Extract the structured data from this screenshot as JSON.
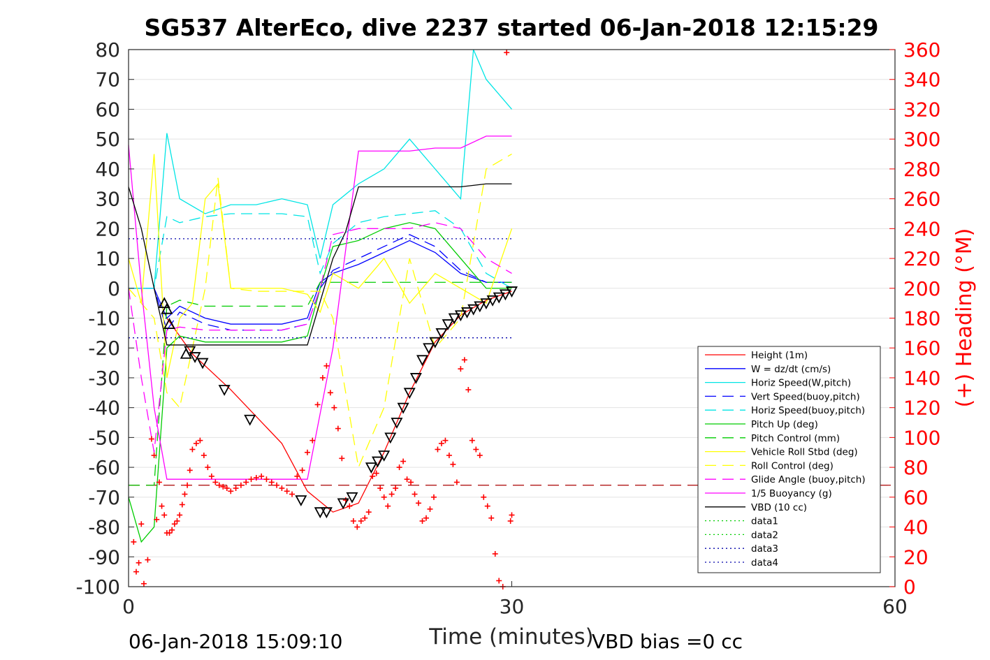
{
  "chart_data": {
    "type": "line",
    "title": "SG537 AlterEco, dive 2237 started 06-Jan-2018 12:15:29",
    "xlabel": "Time (minutes)",
    "ylabel_right": "(+) Heading (°M)",
    "footer_left": "06-Jan-2018 15:09:10",
    "footer_right": "VBD bias =0 cc",
    "xlim": [
      0,
      60
    ],
    "ylim": [
      -100,
      80
    ],
    "ylim_right": [
      0,
      360
    ],
    "x_ticks": [
      "0",
      "30",
      "60"
    ],
    "y_ticks": [
      "80",
      "70",
      "60",
      "50",
      "40",
      "30",
      "20",
      "10",
      "0",
      "-10",
      "-20",
      "-30",
      "-40",
      "-50",
      "-60",
      "-70",
      "-80",
      "-90",
      "-100"
    ],
    "y_ticks_right": [
      "360",
      "340",
      "320",
      "300",
      "280",
      "260",
      "240",
      "220",
      "200",
      "180",
      "160",
      "140",
      "120",
      "100",
      "80",
      "60",
      "40",
      "20",
      "0"
    ],
    "grid": true,
    "legend_position": "bottom-right",
    "colors": {
      "right_axis": "#ff0000",
      "axis": "#262626"
    },
    "series": [
      {
        "name": "Height (1m)",
        "color": "#ff0000",
        "style": "solid",
        "x": [
          3,
          5,
          8,
          12,
          14,
          16,
          18,
          20,
          22,
          24,
          26,
          28,
          30
        ],
        "values": [
          -10,
          -22,
          -34,
          -52,
          -68,
          -75,
          -72,
          -55,
          -35,
          -18,
          -9,
          -4,
          -1
        ]
      },
      {
        "name": "W = dz/dt (cm/s)",
        "color": "#0000ff",
        "style": "solid",
        "x": [
          0,
          2,
          3,
          4,
          6,
          8,
          10,
          12,
          14,
          15,
          16,
          18,
          20,
          22,
          24,
          26,
          28,
          30
        ],
        "values": [
          0,
          0,
          -10,
          -6,
          -10,
          -12,
          -12,
          -12,
          -10,
          2,
          5,
          8,
          12,
          16,
          12,
          5,
          2,
          2
        ]
      },
      {
        "name": "Horiz Speed(W,pitch)",
        "color": "#00e5e5",
        "style": "solid",
        "x": [
          0,
          2,
          3,
          4,
          6,
          8,
          10,
          12,
          14,
          15,
          16,
          18,
          20,
          22,
          24,
          26,
          27,
          28,
          30
        ],
        "values": [
          0,
          0,
          52,
          30,
          25,
          28,
          28,
          30,
          28,
          10,
          28,
          35,
          40,
          50,
          40,
          30,
          80,
          70,
          60
        ]
      },
      {
        "name": "Vert Speed(buoy,pitch)",
        "color": "#0000ff",
        "style": "dash",
        "x": [
          0,
          2,
          3,
          4,
          6,
          8,
          10,
          12,
          14,
          15,
          16,
          18,
          20,
          22,
          24,
          26,
          28,
          30
        ],
        "values": [
          0,
          0,
          -14,
          -8,
          -12,
          -14,
          -14,
          -14,
          -12,
          0,
          6,
          10,
          14,
          18,
          14,
          6,
          2,
          2
        ]
      },
      {
        "name": "Horiz Speed(buoy,pitch)",
        "color": "#00e5e5",
        "style": "dash",
        "x": [
          0,
          2,
          3,
          4,
          6,
          8,
          10,
          12,
          14,
          15,
          16,
          18,
          20,
          22,
          24,
          26,
          28,
          30
        ],
        "values": [
          0,
          0,
          24,
          22,
          24,
          25,
          25,
          25,
          24,
          5,
          15,
          22,
          24,
          25,
          26,
          20,
          5,
          0
        ]
      },
      {
        "name": "Pitch Up (deg)",
        "color": "#00cc00",
        "style": "solid",
        "x": [
          0,
          1,
          2,
          3,
          4,
          6,
          8,
          10,
          12,
          14,
          15,
          16,
          18,
          20,
          22,
          24,
          26,
          28,
          30
        ],
        "values": [
          -70,
          -85,
          -80,
          -20,
          -16,
          -18,
          -18,
          -18,
          -18,
          -16,
          0,
          14,
          16,
          20,
          22,
          20,
          10,
          0,
          0
        ]
      },
      {
        "name": "Pitch Control (mm)",
        "color": "#00cc00",
        "style": "dash",
        "x": [
          0,
          2,
          3,
          4,
          6,
          8,
          10,
          12,
          14,
          15,
          16,
          18,
          20,
          22,
          24,
          26,
          28,
          30
        ],
        "values": [
          -66,
          -66,
          -6,
          -4,
          -6,
          -6,
          -6,
          -6,
          -6,
          2,
          2,
          2,
          2,
          2,
          2,
          2,
          2,
          2
        ]
      },
      {
        "name": "Vehicle Roll Stbd (deg)",
        "color": "#ffff00",
        "style": "solid",
        "x": [
          0,
          1,
          2,
          3,
          4,
          5,
          6,
          7,
          8,
          10,
          12,
          14,
          15,
          16,
          18,
          20,
          22,
          24,
          26,
          28,
          30
        ],
        "values": [
          10,
          -5,
          45,
          -30,
          -10,
          -5,
          30,
          35,
          0,
          0,
          0,
          -2,
          -8,
          5,
          0,
          10,
          -5,
          5,
          0,
          -5,
          20
        ]
      },
      {
        "name": "Roll Control (deg)",
        "color": "#ffff00",
        "style": "dash",
        "x": [
          0,
          2,
          3,
          4,
          5,
          6,
          7,
          8,
          10,
          12,
          14,
          15,
          16,
          18,
          20,
          22,
          24,
          26,
          28,
          30
        ],
        "values": [
          0,
          -10,
          -35,
          -40,
          -20,
          0,
          37,
          0,
          -1,
          -1,
          -1,
          -1,
          -10,
          -60,
          -40,
          10,
          -20,
          -10,
          40,
          45
        ]
      },
      {
        "name": "Glide Angle (buoy,pitch)",
        "color": "#ff00ff",
        "style": "dash",
        "x": [
          0,
          1,
          2,
          3,
          4,
          6,
          8,
          10,
          12,
          14,
          15,
          16,
          18,
          20,
          22,
          24,
          26,
          28,
          30
        ],
        "values": [
          0,
          -30,
          -55,
          -14,
          -13,
          -14,
          -14,
          -14,
          -14,
          -12,
          0,
          18,
          20,
          20,
          20,
          22,
          20,
          10,
          5
        ]
      },
      {
        "name": "1/5 Buoyancy (g)",
        "color": "#ff00ff",
        "style": "solid",
        "x": [
          0,
          1,
          2,
          3,
          4,
          6,
          8,
          10,
          12,
          14,
          16,
          18,
          20,
          22,
          24,
          26,
          28,
          30
        ],
        "values": [
          48,
          0,
          -40,
          -64,
          -64,
          -64,
          -64,
          -64,
          -64,
          -64,
          -20,
          46,
          46,
          46,
          47,
          47,
          51,
          51
        ]
      },
      {
        "name": "VBD (10 cc)",
        "color": "#000000",
        "style": "solid",
        "x": [
          0,
          1,
          2,
          3,
          4,
          6,
          8,
          10,
          12,
          14,
          16,
          17,
          18,
          20,
          22,
          24,
          26,
          28,
          30
        ],
        "values": [
          34,
          20,
          0,
          -19,
          -19,
          -19,
          -19,
          -19,
          -19,
          -19,
          10,
          19,
          34,
          34,
          34,
          34,
          34,
          35,
          35
        ]
      },
      {
        "name": "data1",
        "color": "#00cc00",
        "style": "dot",
        "x": [],
        "values": []
      },
      {
        "name": "data2",
        "color": "#00cc00",
        "style": "dot",
        "x": [],
        "values": []
      },
      {
        "name": "data3",
        "color": "#0000aa",
        "style": "dot",
        "x": [
          0,
          30
        ],
        "values": [
          16.6,
          16.6
        ]
      },
      {
        "name": "data4",
        "color": "#0000aa",
        "style": "dot",
        "x": [
          0,
          30
        ],
        "values": [
          -16.6,
          -16.6
        ]
      }
    ],
    "reference_line": {
      "color": "#aa0000",
      "style": "dash",
      "x": [
        0,
        60
      ],
      "values": [
        -66,
        -66
      ]
    },
    "heading_points": {
      "color": "#ff0000",
      "marker": "+",
      "x": [
        0.4,
        0.6,
        0.8,
        1.0,
        1.2,
        1.5,
        1.8,
        2.0,
        2.2,
        2.4,
        2.6,
        2.8,
        3.0,
        3.2,
        3.4,
        3.6,
        3.8,
        4.0,
        4.2,
        4.4,
        4.6,
        4.8,
        5.0,
        5.3,
        5.6,
        5.9,
        6.2,
        6.5,
        6.8,
        7.1,
        7.4,
        7.7,
        8.0,
        8.4,
        8.8,
        9.2,
        9.6,
        10.0,
        10.4,
        10.8,
        11.2,
        11.6,
        12.0,
        12.4,
        12.8,
        13.2,
        13.6,
        14.0,
        14.4,
        14.8,
        15.2,
        15.5,
        15.8,
        16.1,
        16.4,
        16.7,
        17.0,
        17.3,
        17.6,
        17.9,
        18.2,
        18.5,
        18.8,
        19.1,
        19.4,
        19.7,
        20.0,
        20.3,
        20.6,
        20.9,
        21.2,
        21.5,
        21.8,
        22.1,
        22.4,
        22.7,
        23.0,
        23.3,
        23.6,
        23.9,
        24.2,
        24.5,
        24.8,
        25.1,
        25.4,
        25.7,
        26.0,
        26.3,
        26.6,
        26.9,
        27.2,
        27.5,
        27.8,
        28.1,
        28.4,
        28.7,
        29.0,
        29.3,
        29.6,
        29.9,
        30.0
      ],
      "values": [
        30,
        10,
        16,
        42,
        2,
        18,
        99,
        88,
        45,
        70,
        54,
        48,
        36,
        36,
        38,
        42,
        44,
        48,
        55,
        62,
        68,
        78,
        92,
        96,
        98,
        88,
        80,
        74,
        70,
        68,
        67,
        66,
        64,
        66,
        68,
        70,
        72,
        73,
        74,
        72,
        70,
        68,
        66,
        64,
        62,
        74,
        78,
        90,
        98,
        122,
        140,
        148,
        130,
        120,
        106,
        86,
        58,
        54,
        44,
        40,
        44,
        46,
        50,
        74,
        76,
        66,
        60,
        54,
        62,
        66,
        80,
        84,
        72,
        70,
        62,
        56,
        44,
        46,
        52,
        60,
        92,
        96,
        98,
        88,
        82,
        70,
        146,
        152,
        132,
        98,
        92,
        88,
        60,
        54,
        46,
        22,
        4,
        0,
        358,
        44,
        48
      ]
    },
    "depth_markers": {
      "color": "#000000",
      "x": [
        2.8,
        3.0,
        3.2,
        4.5,
        4.8,
        5.2,
        5.8,
        7.5,
        9.5,
        13.5,
        15.0,
        15.5,
        16.8,
        17.5,
        19.0,
        19.5,
        20.0,
        20.5,
        21.0,
        21.5,
        22.0,
        22.5,
        23.0,
        23.5,
        24.0,
        24.5,
        25.0,
        25.5,
        26.0,
        26.5,
        27.0,
        27.5,
        28.0,
        28.5,
        29.0,
        29.5,
        30.0
      ],
      "values": [
        -5,
        -7,
        -12,
        -22,
        -21,
        -23,
        -25,
        -34,
        -44,
        -71,
        -75,
        -75,
        -72,
        -70,
        -60,
        -58,
        -56,
        -50,
        -45,
        -40,
        -35,
        -30,
        -24,
        -20,
        -18,
        -15,
        -12,
        -10,
        -9,
        -8,
        -7,
        -6,
        -5,
        -4,
        -3,
        -2,
        -1
      ]
    }
  },
  "legend": {
    "items": [
      "Height (1m)",
      "W = dz/dt (cm/s)",
      "Horiz Speed(W,pitch)",
      "Vert Speed(buoy,pitch)",
      "Horiz Speed(buoy,pitch)",
      "Pitch Up (deg)",
      "Pitch Control (mm)",
      "Vehicle Roll Stbd (deg)",
      "Roll Control (deg)",
      "Glide Angle (buoy,pitch)",
      "1/5 Buoyancy (g)",
      "VBD (10 cc)",
      "data1",
      "data2",
      "data3",
      "data4"
    ]
  }
}
